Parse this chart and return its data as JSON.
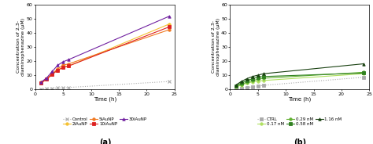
{
  "chart_a": {
    "time_points": [
      1,
      2,
      3,
      4,
      5,
      6,
      24
    ],
    "control": [
      0.3,
      0.5,
      0.7,
      0.9,
      1.1,
      1.3,
      5.5
    ],
    "aunp2": [
      4.5,
      7.0,
      10.5,
      13.5,
      15.5,
      16.5,
      46.0
    ],
    "aunp5": [
      4.8,
      7.5,
      11.0,
      14.5,
      17.0,
      18.0,
      42.0
    ],
    "aunp10": [
      4.5,
      7.0,
      10.5,
      13.5,
      15.5,
      16.5,
      44.0
    ],
    "aunp30": [
      5.0,
      8.0,
      12.5,
      17.0,
      19.5,
      21.0,
      51.5
    ],
    "colors": {
      "control": "#aaaaaa",
      "aunp2": "#f5c030",
      "aunp5": "#f07820",
      "aunp10": "#dd2020",
      "aunp30": "#7020a0"
    },
    "xlabel": "Time (h)",
    "ylabel": "Concentration of 2,3-\ndiaminophenazine (μM)",
    "ylim": [
      0,
      60
    ],
    "xlim": [
      0,
      25
    ],
    "xticks": [
      0,
      5,
      10,
      15,
      20,
      25
    ],
    "yticks": [
      0,
      10,
      20,
      30,
      40,
      50,
      60
    ],
    "label": "(a)",
    "legend": [
      {
        "label": "Control",
        "color": "#aaaaaa",
        "ls": ":",
        "marker": "x"
      },
      {
        "label": "2iAuNP",
        "color": "#f5c030",
        "ls": "-",
        "marker": "o"
      },
      {
        "label": "5iAuNP",
        "color": "#f07820",
        "ls": "-",
        "marker": "o"
      },
      {
        "label": "10iAuNP",
        "color": "#dd2020",
        "ls": "-",
        "marker": "s"
      },
      {
        "label": "30iAuNP",
        "color": "#7020a0",
        "ls": "-",
        "marker": "^"
      }
    ]
  },
  "chart_b": {
    "time_points": [
      1,
      2,
      3,
      4,
      5,
      6,
      24
    ],
    "ctrl": [
      0.3,
      0.8,
      1.2,
      1.8,
      2.2,
      2.8,
      8.5
    ],
    "nm017": [
      1.5,
      3.0,
      4.2,
      5.2,
      5.8,
      6.2,
      11.0
    ],
    "nm029": [
      2.0,
      3.5,
      5.0,
      6.2,
      7.0,
      7.8,
      12.0
    ],
    "nm058": [
      2.5,
      4.5,
      6.0,
      7.5,
      8.5,
      9.0,
      11.5
    ],
    "nm116": [
      3.0,
      5.5,
      7.5,
      9.0,
      10.0,
      11.0,
      18.0
    ],
    "colors": {
      "ctrl": "#aaaaaa",
      "nm017": "#b0e060",
      "nm029": "#60b030",
      "nm058": "#308020",
      "nm116": "#184010"
    },
    "xlabel": "Time (h)",
    "ylabel": "Concentration of 2,3-\ndiaminophenazine (μM)",
    "ylim": [
      0,
      60
    ],
    "xlim": [
      0,
      25
    ],
    "xticks": [
      0,
      5,
      10,
      15,
      20,
      25
    ],
    "yticks": [
      0,
      10,
      20,
      30,
      40,
      50,
      60
    ],
    "label": "(b)",
    "legend": [
      {
        "label": "CTRL",
        "color": "#aaaaaa",
        "ls": ":",
        "marker": "s"
      },
      {
        "label": "0.17 nM",
        "color": "#b0e060",
        "ls": "-",
        "marker": "o"
      },
      {
        "label": "0.29 nM",
        "color": "#60b030",
        "ls": "-",
        "marker": "o"
      },
      {
        "label": "0.58 nM",
        "color": "#308020",
        "ls": "-",
        "marker": "s"
      },
      {
        "label": "1.16 nM",
        "color": "#184010",
        "ls": "-",
        "marker": "^"
      }
    ]
  },
  "fig_width": 4.74,
  "fig_height": 1.84,
  "dpi": 100
}
